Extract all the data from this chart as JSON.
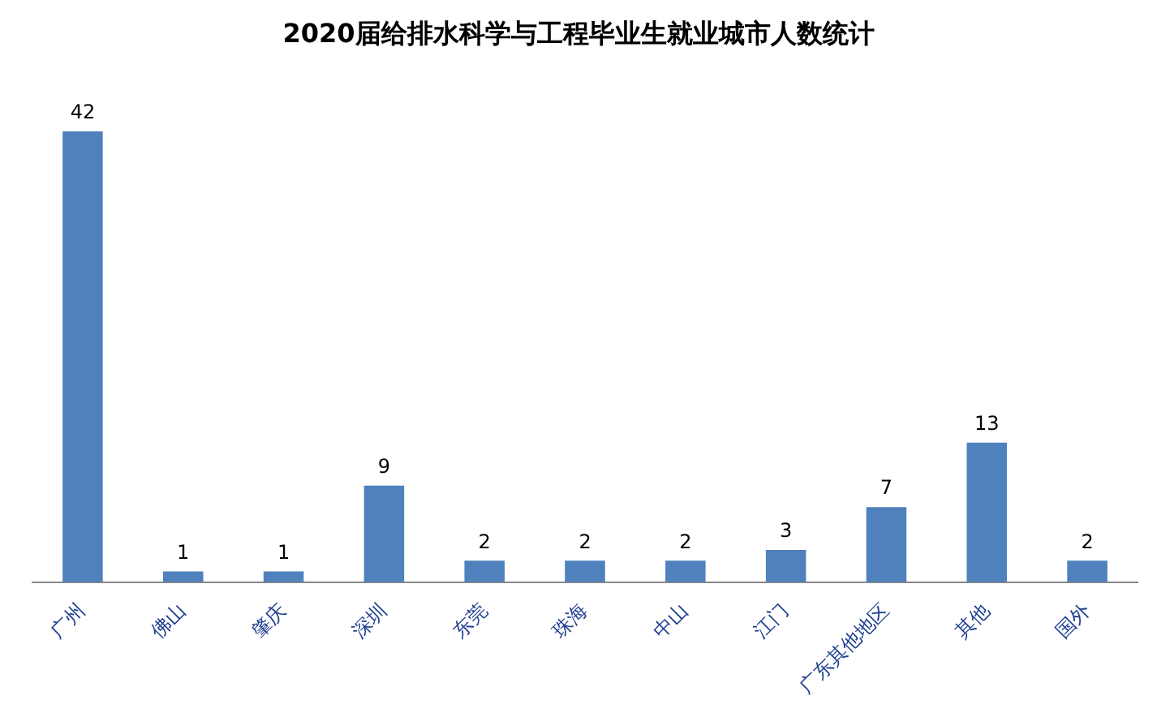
{
  "chart_data": {
    "type": "bar",
    "title": "2020届给排水科学与工程毕业生就业城市人数统计",
    "categories": [
      "广州",
      "佛山",
      "肇庆",
      "深圳",
      "东莞",
      "珠海",
      "中山",
      "江门",
      "广东其他地区",
      "其他",
      "国外"
    ],
    "values": [
      42,
      1,
      1,
      9,
      2,
      2,
      2,
      3,
      7,
      13,
      2
    ],
    "color": "#4f81bd",
    "data_labels": true,
    "grid": false,
    "legend": false
  }
}
